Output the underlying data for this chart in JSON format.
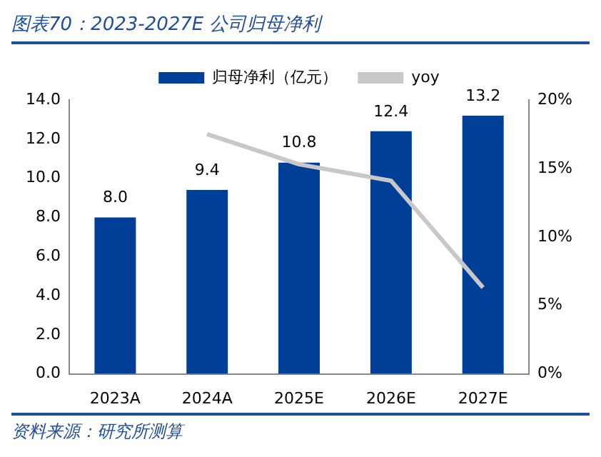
{
  "chart_data": {
    "type": "bar",
    "title": "图表70：2023-2027E 公司归母净利",
    "annotations": [
      "资料来源：研究所测算"
    ],
    "categories": [
      "2023A",
      "2024A",
      "2025E",
      "2026E",
      "2027E"
    ],
    "series": [
      {
        "name": "归母净利（亿元）",
        "color": "#003f98",
        "values": [
          8.0,
          9.4,
          10.8,
          12.4,
          13.2
        ],
        "value_labels": [
          "8.0",
          "9.4",
          "10.8",
          "12.4",
          "13.2"
        ]
      },
      {
        "name": "yoy",
        "type": "line",
        "axis": "y2",
        "color": "#c8c8c8",
        "values": [
          null,
          17.5,
          15.3,
          14.1,
          6.3
        ]
      }
    ],
    "ylim": [
      0,
      14
    ],
    "yticks": [
      {
        "value": 0,
        "label": "0.0"
      },
      {
        "value": 2,
        "label": "2.0"
      },
      {
        "value": 4,
        "label": "4.0"
      },
      {
        "value": 6,
        "label": "6.0"
      },
      {
        "value": 8,
        "label": "8.0"
      },
      {
        "value": 10,
        "label": "10.0"
      },
      {
        "value": 12,
        "label": "12.0"
      },
      {
        "value": 14,
        "label": "14.0"
      }
    ],
    "y2lim": [
      0,
      20
    ],
    "y2ticks": [
      {
        "value": 0,
        "label": "0%"
      },
      {
        "value": 5,
        "label": "5%"
      },
      {
        "value": 10,
        "label": "10%"
      },
      {
        "value": 15,
        "label": "15%"
      },
      {
        "value": 20,
        "label": "20%"
      }
    ],
    "legend": "top",
    "grid": false,
    "marker": "none"
  }
}
